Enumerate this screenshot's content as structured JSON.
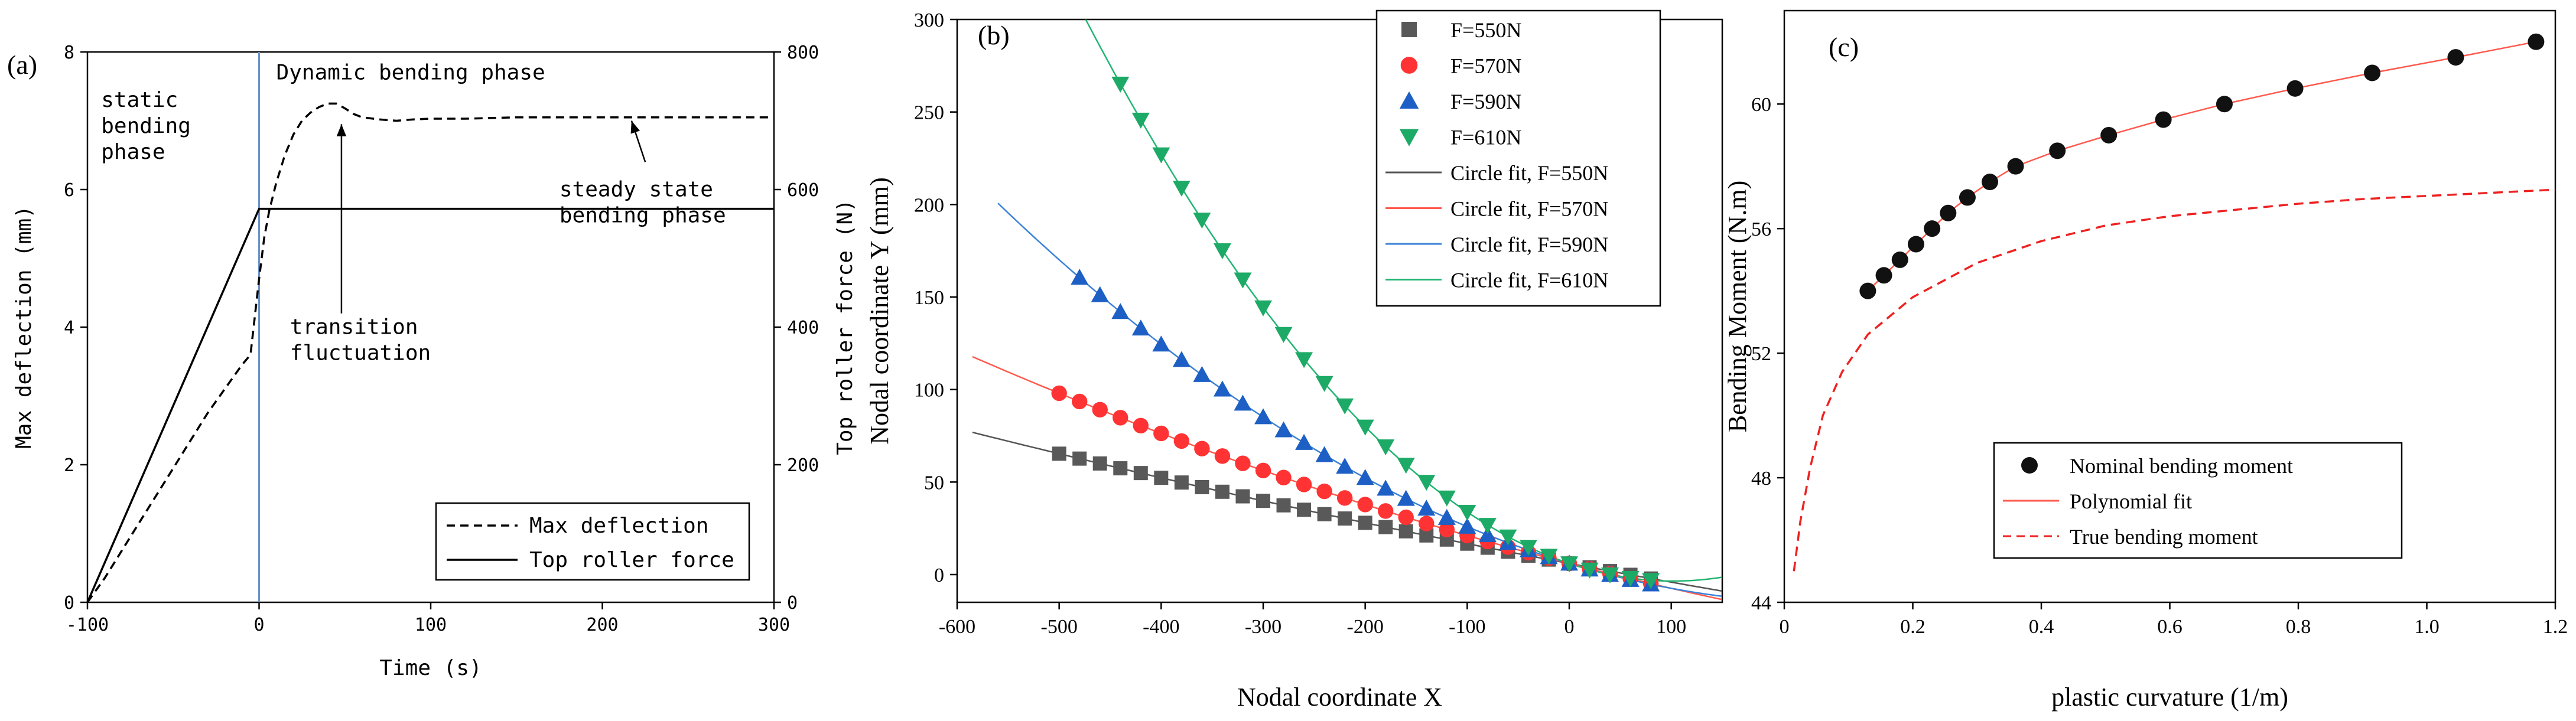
{
  "chart_data": [
    {
      "id": "a",
      "type": "line",
      "panel_label": "(a)",
      "xlabel": "Time (s)",
      "ylabel": "Max deflection (mm)",
      "y2label": "Top roller force (N)",
      "xlim": [
        -100,
        300
      ],
      "ylim": [
        0,
        8
      ],
      "y2lim": [
        0,
        800
      ],
      "xticks": [
        -100,
        0,
        100,
        200,
        300
      ],
      "yticks": [
        0,
        2,
        4,
        6,
        8
      ],
      "y2ticks": [
        0,
        200,
        400,
        600,
        800
      ],
      "legend_position": "bottom-right",
      "series": [
        {
          "name": "Max deflection",
          "axis": "left",
          "style": "dashed",
          "color": "#000000",
          "x": [
            -100,
            -90,
            -80,
            -70,
            -60,
            -50,
            -40,
            -30,
            -20,
            -10,
            -5,
            0,
            3,
            6,
            10,
            15,
            20,
            25,
            30,
            35,
            40,
            45,
            50,
            55,
            60,
            70,
            80,
            90,
            100,
            120,
            150,
            200,
            250,
            300
          ],
          "y": [
            0,
            0.35,
            0.75,
            1.15,
            1.55,
            1.95,
            2.35,
            2.75,
            3.1,
            3.45,
            3.6,
            4.7,
            5.3,
            5.7,
            6.1,
            6.5,
            6.8,
            7.0,
            7.12,
            7.2,
            7.25,
            7.25,
            7.18,
            7.1,
            7.05,
            7.02,
            7.0,
            7.02,
            7.03,
            7.03,
            7.05,
            7.05,
            7.05,
            7.05
          ]
        },
        {
          "name": "Top roller force",
          "axis": "right",
          "style": "solid",
          "color": "#000000",
          "x": [
            -100,
            0,
            300
          ],
          "y": [
            0,
            572,
            572
          ]
        }
      ],
      "vline": {
        "x": 0,
        "color": "#6b93c7"
      },
      "annotations": [
        {
          "text": "static\nbending\nphase",
          "x": -92,
          "y": 7.2
        },
        {
          "text": "Dynamic bending phase",
          "x": 10,
          "y": 7.6
        },
        {
          "text": "transition\nfluctuation",
          "x": 18,
          "y": 3.9,
          "arrow_to": [
            48,
            6.95
          ],
          "arrow_from": [
            48,
            4.2
          ]
        },
        {
          "text": "steady state\nbending phase",
          "x": 175,
          "y": 5.9,
          "arrow_to": [
            217,
            7.0
          ],
          "arrow_from": [
            225,
            6.4
          ]
        }
      ]
    },
    {
      "id": "b",
      "type": "scatter",
      "panel_label": "(b)",
      "xlabel": "Nodal coordinate X",
      "ylabel": "Nodal coordinate Y (mm)",
      "xlim": [
        -600,
        150
      ],
      "ylim": [
        -15,
        300
      ],
      "xticks": [
        -600,
        -500,
        -400,
        -300,
        -200,
        -100,
        0,
        100
      ],
      "yticks": [
        0,
        50,
        100,
        150,
        200,
        250,
        300
      ],
      "legend_position": "top-right",
      "series": [
        {
          "name": "F=550N",
          "marker": "square",
          "color": "#595959",
          "x_start": -500,
          "x_end": 90,
          "x_step": 20,
          "fit_name": "Circle fit, F=550N",
          "fit_color": "#555555",
          "fit_x": [
            -585,
            150
          ],
          "a": 2.93e-05,
          "b": -0.104,
          "c": 6.0
        },
        {
          "name": "F=570N",
          "marker": "circle",
          "color": "#ff3333",
          "x_start": -500,
          "x_end": 90,
          "x_step": 20,
          "fit_name": "Circle fit, F=570N",
          "fit_color": "#ff5a4d",
          "fit_x": [
            -585,
            150
          ],
          "a": 8.28e-05,
          "b": -0.1426,
          "c": 6.0
        },
        {
          "name": "F=590N",
          "marker": "triangle-up",
          "color": "#1d5fc4",
          "x_start": -480,
          "x_end": 90,
          "x_step": 20,
          "fit_name": "Circle fit, F=590N",
          "fit_color": "#3a82d6",
          "fit_x": [
            -560,
            150
          ],
          "a": 0.000323,
          "b": -0.1668,
          "c": 6.0
        },
        {
          "name": "F=610N",
          "marker": "triangle-down",
          "color": "#1daa66",
          "x_start": -440,
          "x_end": 90,
          "x_step": 20,
          "fit_name": "Circle fit, F=610N",
          "fit_color": "#22b573",
          "fit_x": [
            -490,
            150
          ],
          "a": 0.000915,
          "b": -0.1866,
          "c": 6.0
        }
      ]
    },
    {
      "id": "c",
      "type": "line",
      "panel_label": "(c)",
      "xlabel": "plastic curvature (1/m)",
      "ylabel": "Bending Moment (N.m)",
      "xlim": [
        0,
        1.2
      ],
      "ylim": [
        44,
        63
      ],
      "xticks": [
        0,
        0.2,
        0.4,
        0.6,
        0.8,
        1.0,
        1.2
      ],
      "yticks": [
        44,
        48,
        52,
        56,
        60
      ],
      "legend_position": "bottom-right",
      "series": [
        {
          "name": "Nominal bending moment",
          "marker": "circle",
          "color": "#111111",
          "x": [
            0.13,
            0.155,
            0.18,
            0.205,
            0.23,
            0.255,
            0.285,
            0.32,
            0.36,
            0.425,
            0.505,
            0.59,
            0.685,
            0.795,
            0.915,
            1.045,
            1.17
          ],
          "y": [
            54.0,
            54.5,
            55.0,
            55.5,
            56.0,
            56.5,
            57.0,
            57.5,
            58.0,
            58.5,
            59.0,
            59.5,
            60.0,
            60.5,
            61.0,
            61.5,
            62.0
          ]
        },
        {
          "name": "Polynomial fit",
          "style": "solid",
          "color": "#ff5a4d",
          "x": [
            0.13,
            0.155,
            0.18,
            0.205,
            0.23,
            0.255,
            0.285,
            0.32,
            0.36,
            0.425,
            0.505,
            0.59,
            0.685,
            0.795,
            0.915,
            1.045,
            1.17
          ],
          "y": [
            54.0,
            54.5,
            55.0,
            55.5,
            56.0,
            56.5,
            57.0,
            57.5,
            58.0,
            58.5,
            59.0,
            59.5,
            60.0,
            60.5,
            61.0,
            61.5,
            62.0
          ]
        },
        {
          "name": "True bending moment",
          "style": "dashed",
          "color": "#ee2222",
          "x": [
            0.015,
            0.025,
            0.04,
            0.06,
            0.09,
            0.13,
            0.2,
            0.3,
            0.4,
            0.5,
            0.6,
            0.7,
            0.8,
            0.9,
            1.0,
            1.1,
            1.2
          ],
          "y": [
            45.0,
            46.6,
            48.3,
            50.0,
            51.4,
            52.6,
            53.8,
            54.9,
            55.6,
            56.1,
            56.4,
            56.6,
            56.8,
            56.95,
            57.05,
            57.15,
            57.25
          ]
        }
      ]
    }
  ]
}
